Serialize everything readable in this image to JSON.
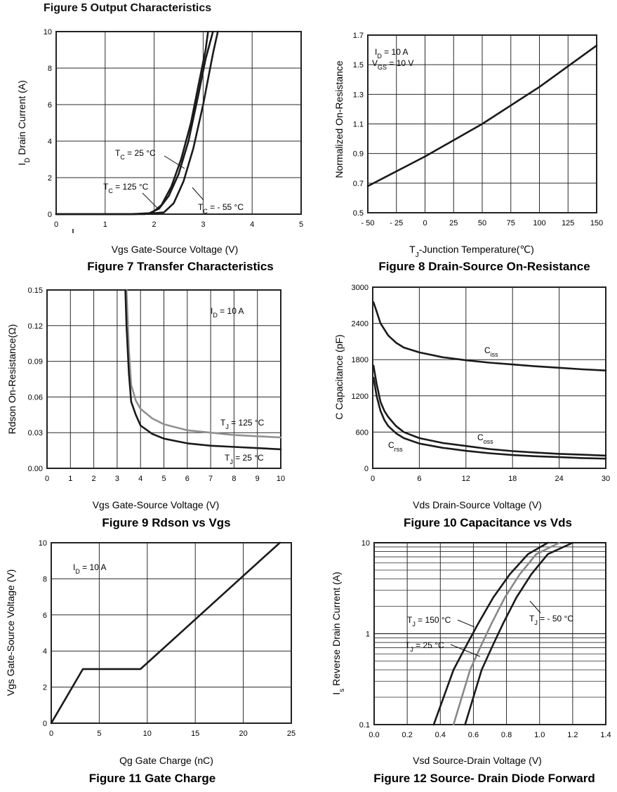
{
  "page_header": "Figure 5 Output Characteristics",
  "charts": [
    {
      "type": "line",
      "caption": "Figure 7 Transfer Characteristics",
      "xlabel": "Vgs Gate-Source Voltage (V)",
      "ylabel": "ID Drain Current (A)",
      "ylabel_main": "I",
      "ylabel_sub": "D",
      "ylabel_rest": " Drain Current (A)",
      "xlim": [
        0,
        5
      ],
      "ylim": [
        0,
        10
      ],
      "xticks": [
        0,
        1,
        2,
        3,
        4,
        5
      ],
      "yticks": [
        0,
        2,
        4,
        6,
        8,
        10
      ],
      "xticklabels": [
        "0",
        "1",
        "2",
        "3",
        "4",
        "5"
      ],
      "yticklabels": [
        "0",
        "2",
        "4",
        "6",
        "8",
        "10"
      ],
      "grid": true,
      "series": [
        {
          "name": "TC = 25 °C",
          "x": [
            0,
            1.5,
            1.9,
            2.1,
            2.3,
            2.5,
            2.7,
            2.9,
            3.05,
            3.2
          ],
          "y": [
            0,
            0,
            0.05,
            0.3,
            1.0,
            2.2,
            4.0,
            6.5,
            8.5,
            10
          ]
        },
        {
          "name": "TC = 125 °C",
          "x": [
            0,
            1.6,
            1.95,
            2.15,
            2.35,
            2.55,
            2.75,
            2.9,
            3.05,
            3.1
          ],
          "y": [
            0,
            0,
            0.05,
            0.5,
            1.5,
            3.0,
            5.0,
            7.0,
            9.0,
            10
          ]
        },
        {
          "name": "TC = - 55 °C",
          "x": [
            0,
            1.8,
            2.2,
            2.4,
            2.6,
            2.8,
            3.0,
            3.2,
            3.3
          ],
          "y": [
            0,
            0,
            0.1,
            0.6,
            1.8,
            3.6,
            6.0,
            8.8,
            10
          ]
        }
      ],
      "annotations": [
        {
          "main": "T",
          "sub": "C",
          "rest": " = 25 °C"
        },
        {
          "main": "T",
          "sub": "C",
          "rest": " = 125 °C"
        },
        {
          "main": "T",
          "sub": "C",
          "rest": " = - 55 °C"
        }
      ]
    },
    {
      "type": "line",
      "caption": "Figure 8 Drain-Source On-Resistance",
      "xlabel": "TJ-Junction Temperature(℃)",
      "xlabel_main": "T",
      "xlabel_sub": "J",
      "xlabel_rest": "-Junction Temperature(℃)",
      "ylabel": "Normalized On-Resistance",
      "xlim": [
        -50,
        150
      ],
      "ylim": [
        0.5,
        1.7
      ],
      "xticks": [
        -50,
        -25,
        0,
        25,
        50,
        75,
        100,
        125,
        150
      ],
      "yticks": [
        0.5,
        0.7,
        0.9,
        1.1,
        1.3,
        1.5,
        1.7
      ],
      "xticklabels": [
        "- 50",
        "- 25",
        "0",
        "25",
        "50",
        "75",
        "100",
        "125",
        "150"
      ],
      "yticklabels": [
        "0.5",
        "0.7",
        "0.9",
        "1.1",
        "1.3",
        "1.5",
        "1.7"
      ],
      "grid": true,
      "series": [
        {
          "x": [
            -50,
            0,
            50,
            100,
            150
          ],
          "y": [
            0.68,
            0.88,
            1.1,
            1.35,
            1.63
          ]
        }
      ],
      "annotations": [
        {
          "main": "I",
          "sub": "D",
          "rest": " = 10 A"
        },
        {
          "main": "V",
          "sub": "GS",
          "rest": " = 10 V"
        }
      ]
    },
    {
      "type": "line",
      "caption": "Figure 9 Rdson vs Vgs",
      "xlabel": "Vgs Gate-Source Voltage (V)",
      "ylabel": "Rdson On-Resistance(Ω)",
      "xlim": [
        0,
        10
      ],
      "ylim": [
        0,
        0.15
      ],
      "xticks": [
        0,
        1,
        2,
        3,
        4,
        5,
        6,
        7,
        8,
        9,
        10
      ],
      "yticks": [
        0,
        0.03,
        0.06,
        0.09,
        0.12,
        0.15
      ],
      "xticklabels": [
        "0",
        "1",
        "2",
        "3",
        "4",
        "5",
        "6",
        "7",
        "8",
        "9",
        "10"
      ],
      "yticklabels": [
        "0.00",
        "0.03",
        "0.06",
        "0.09",
        "0.12",
        "0.15"
      ],
      "grid": true,
      "series": [
        {
          "name": "TJ = 125 °C",
          "color": "#909090",
          "x": [
            3.4,
            3.5,
            3.6,
            3.8,
            4.0,
            4.5,
            5,
            6,
            7,
            8,
            9,
            10
          ],
          "y": [
            0.15,
            0.1,
            0.07,
            0.057,
            0.05,
            0.042,
            0.037,
            0.032,
            0.03,
            0.028,
            0.027,
            0.026
          ]
        },
        {
          "name": "TJ = 25 °C",
          "color": "#1a1a1a",
          "x": [
            3.35,
            3.4,
            3.5,
            3.6,
            3.8,
            4.0,
            4.5,
            5,
            6,
            7,
            8,
            9,
            10
          ],
          "y": [
            0.15,
            0.12,
            0.08,
            0.056,
            0.045,
            0.036,
            0.029,
            0.025,
            0.021,
            0.019,
            0.018,
            0.017,
            0.016
          ]
        }
      ],
      "annotations": [
        {
          "main": "I",
          "sub": "D",
          "rest": " = 10 A"
        },
        {
          "main": "T",
          "sub": "J",
          "rest": " = 125 °C"
        },
        {
          "main": "T",
          "sub": "J",
          "rest": " = 25 °C"
        }
      ]
    },
    {
      "type": "line",
      "caption": "Figure 10 Capacitance vs Vds",
      "xlabel": "Vds Drain-Source Voltage (V)",
      "ylabel": "C Capacitance (pF)",
      "xlim": [
        0,
        30
      ],
      "ylim": [
        0,
        3000
      ],
      "xticks": [
        0,
        6,
        12,
        18,
        24,
        30
      ],
      "yticks": [
        0,
        600,
        1200,
        1800,
        2400,
        3000
      ],
      "xticklabels": [
        "0",
        "6",
        "12",
        "18",
        "24",
        "30"
      ],
      "yticklabels": [
        "0",
        "600",
        "1200",
        "1800",
        "2400",
        "3000"
      ],
      "grid": true,
      "series": [
        {
          "name": "Ciss",
          "x": [
            0.1,
            0.5,
            1,
            2,
            3,
            4,
            6,
            9,
            12,
            15,
            18,
            21,
            24,
            27,
            30
          ],
          "y": [
            2750,
            2600,
            2400,
            2200,
            2080,
            2000,
            1920,
            1840,
            1790,
            1750,
            1720,
            1690,
            1665,
            1640,
            1620
          ]
        },
        {
          "name": "Coss",
          "x": [
            0.1,
            0.5,
            1,
            1.5,
            2,
            3,
            4,
            6,
            9,
            12,
            15,
            18,
            21,
            24,
            27,
            30
          ],
          "y": [
            1700,
            1400,
            1100,
            950,
            850,
            700,
            600,
            500,
            420,
            370,
            320,
            285,
            260,
            240,
            225,
            210
          ]
        },
        {
          "name": "Crss",
          "x": [
            0.1,
            0.5,
            1,
            1.5,
            2,
            3,
            4,
            6,
            9,
            12,
            15,
            18,
            21,
            24,
            27,
            30
          ],
          "y": [
            1500,
            1200,
            950,
            800,
            700,
            580,
            500,
            410,
            340,
            290,
            250,
            220,
            200,
            185,
            170,
            160
          ]
        }
      ],
      "annotations": [
        {
          "main": "C",
          "sub": "iss",
          "rest": ""
        },
        {
          "main": "C",
          "sub": "oss",
          "rest": ""
        },
        {
          "main": "C",
          "sub": "rss",
          "rest": ""
        }
      ]
    },
    {
      "type": "line",
      "caption": "Figure 11 Gate Charge",
      "xlabel": "Qg Gate Charge (nC)",
      "ylabel": "Vgs Gate-Source Voltage (V)",
      "xlim": [
        0,
        25
      ],
      "ylim": [
        0,
        10
      ],
      "xticks": [
        0,
        5,
        10,
        15,
        20,
        25
      ],
      "yticks": [
        0,
        2,
        4,
        6,
        8,
        10
      ],
      "xticklabels": [
        "0",
        "5",
        "10",
        "15",
        "20",
        "25"
      ],
      "yticklabels": [
        "0",
        "2",
        "4",
        "6",
        "8",
        "10"
      ],
      "grid": true,
      "series": [
        {
          "x": [
            0,
            3.3,
            9.3,
            23.8
          ],
          "y": [
            0,
            3.0,
            3.0,
            10
          ]
        }
      ],
      "annotations": [
        {
          "main": "I",
          "sub": "D",
          "rest": " = 10 A"
        }
      ]
    },
    {
      "type": "line",
      "caption": "Figure 12 Source- Drain Diode Forward",
      "xlabel": "Vsd Source-Drain Voltage (V)",
      "ylabel": "Is Reverse Drain Current (A)",
      "ylabel_main": "I",
      "ylabel_sub": "s",
      "ylabel_rest": " Reverse Drain Current (A)",
      "xlim": [
        0,
        1.4
      ],
      "ylim": [
        0.1,
        10
      ],
      "yscale": "log",
      "xticks": [
        0,
        0.2,
        0.4,
        0.6,
        0.8,
        1.0,
        1.2,
        1.4
      ],
      "yticks": [
        0.1,
        1,
        10
      ],
      "xticklabels": [
        "0.0",
        "0.2",
        "0.4",
        "0.6",
        "0.8",
        "1.0",
        "1.2",
        "1.4"
      ],
      "yticklabels": [
        "0.1",
        "1",
        "10"
      ],
      "grid": true,
      "series": [
        {
          "name": "TJ = 150 °C",
          "color": "#1a1a1a",
          "x": [
            0.36,
            0.42,
            0.48,
            0.55,
            0.63,
            0.72,
            0.82,
            0.93,
            1.05
          ],
          "y": [
            0.1,
            0.2,
            0.4,
            0.7,
            1.3,
            2.5,
            4.5,
            7.5,
            10
          ]
        },
        {
          "name": "TJ = 25 °C",
          "color": "#888888",
          "x": [
            0.48,
            0.53,
            0.58,
            0.64,
            0.71,
            0.79,
            0.88,
            0.98,
            1.12
          ],
          "y": [
            0.1,
            0.2,
            0.4,
            0.7,
            1.3,
            2.5,
            4.5,
            7.5,
            10
          ]
        },
        {
          "name": "TJ = - 50 °C",
          "color": "#1a1a1a",
          "x": [
            0.55,
            0.6,
            0.65,
            0.71,
            0.78,
            0.86,
            0.95,
            1.05,
            1.2
          ],
          "y": [
            0.1,
            0.2,
            0.4,
            0.7,
            1.3,
            2.5,
            4.5,
            7.5,
            10
          ]
        }
      ],
      "annotations": [
        {
          "main": "T",
          "sub": "J",
          "rest": " = 150 °C"
        },
        {
          "main": "T",
          "sub": "J",
          "rest": " = 25 °C"
        },
        {
          "main": "T",
          "sub": "J",
          "rest": " = - 50 °C"
        }
      ]
    }
  ]
}
